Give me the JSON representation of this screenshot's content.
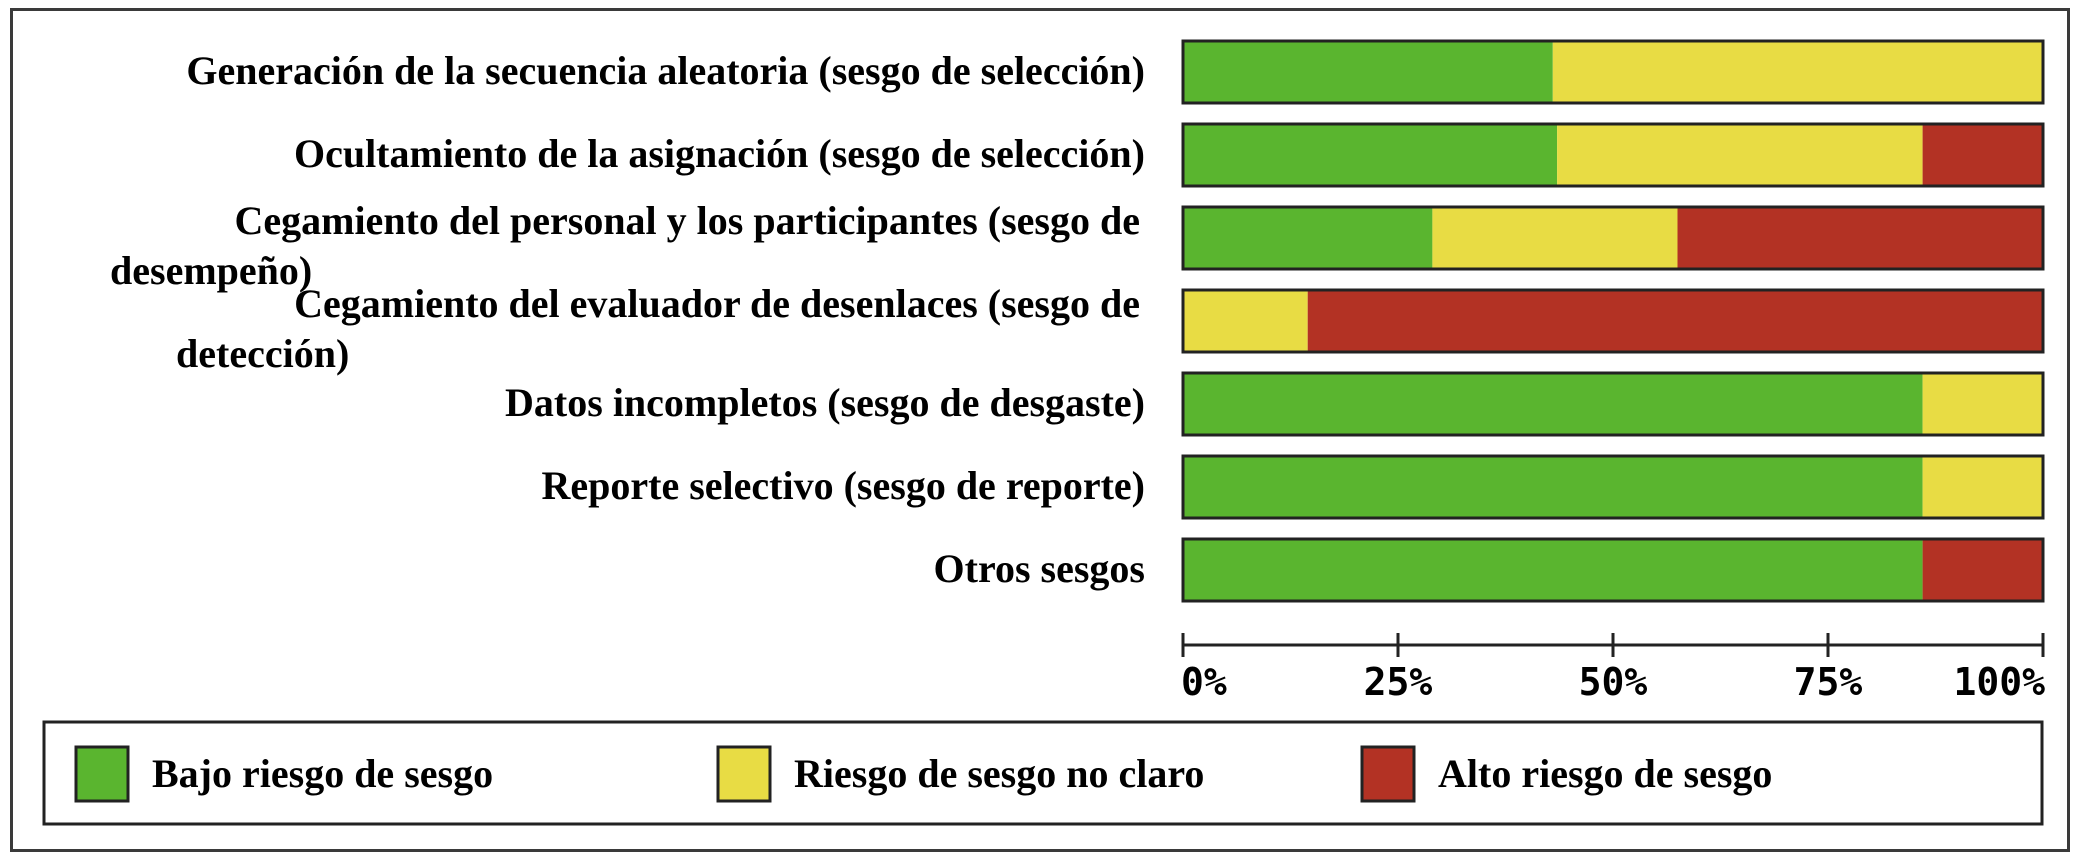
{
  "chart_data": {
    "type": "bar",
    "stacked": true,
    "orientation": "horizontal",
    "categories": [
      [
        "Generación de la secuencia aleatoria (sesgo de selección)"
      ],
      [
        "Ocultamiento de la asignación (sesgo de selección)"
      ],
      [
        "Cegamiento del personal y los participantes (sesgo de",
        "desempeño)"
      ],
      [
        "Cegamiento del evaluador de desenlaces (sesgo de",
        "detección)"
      ],
      [
        "Datos incompletos (sesgo de desgaste)"
      ],
      [
        "Reporte selectivo (sesgo de reporte)"
      ],
      [
        "Otros sesgos"
      ]
    ],
    "series": [
      {
        "name": "Bajo riesgo de sesgo",
        "color": "#5ab52f",
        "values": [
          43,
          43.5,
          29,
          0,
          86,
          86,
          86
        ]
      },
      {
        "name": "Riesgo de sesgo no claro",
        "color": "#e8dc44",
        "values": [
          57,
          42.5,
          28.5,
          14.5,
          14,
          14,
          0
        ]
      },
      {
        "name": "Alto riesgo de sesgo",
        "color": "#b33224",
        "values": [
          0,
          14,
          42.5,
          85.5,
          0,
          0,
          14
        ]
      }
    ],
    "x_ticks": [
      "0%",
      "25%",
      "50%",
      "75%",
      "100%"
    ],
    "xlim": [
      0,
      100
    ],
    "legend": "bottom",
    "grid": false
  }
}
